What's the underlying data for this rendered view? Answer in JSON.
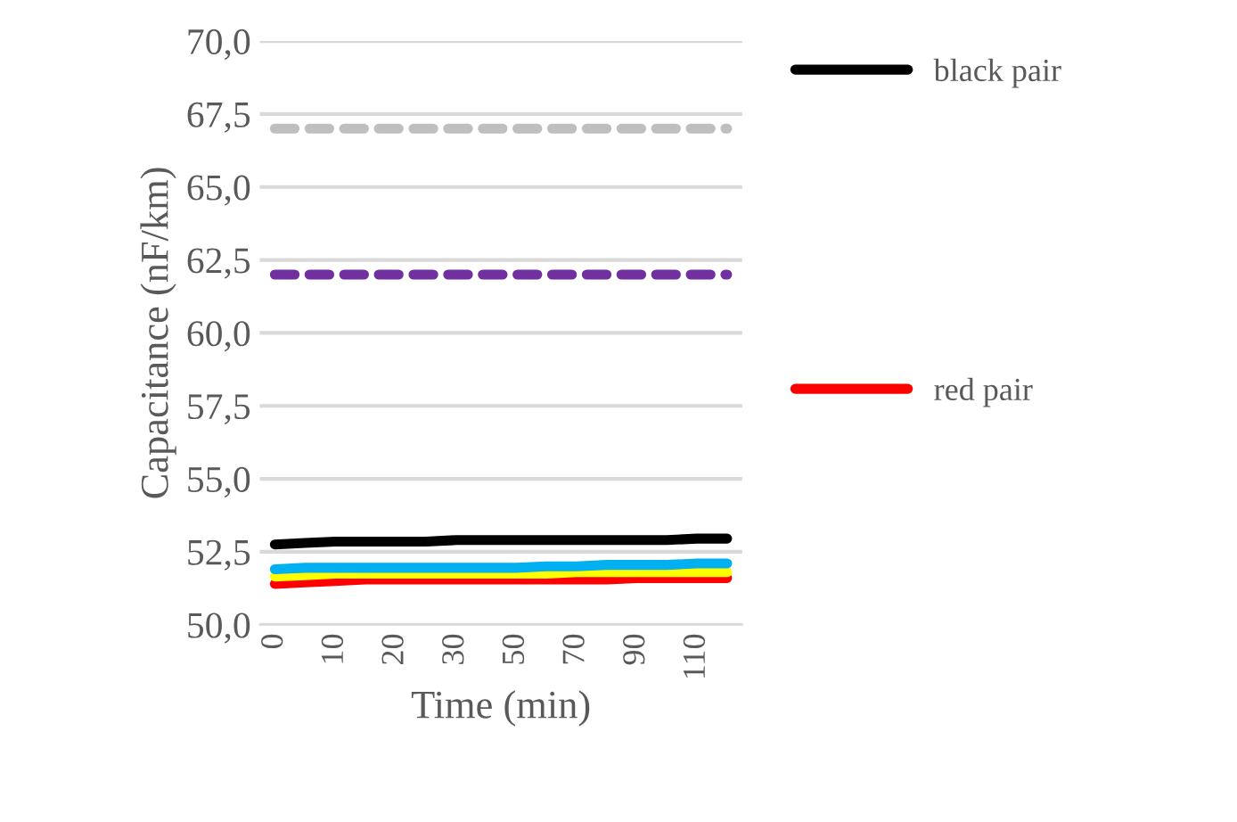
{
  "chart_data": {
    "type": "line",
    "xlabel": "Time (min)",
    "ylabel": "Capacitance (nF/km)",
    "categories": [
      "0",
      null,
      "10",
      null,
      "20",
      null,
      "30",
      null,
      "50",
      null,
      "70",
      null,
      "90",
      null,
      "110",
      null
    ],
    "series": [
      {
        "color": "#bfbfbf",
        "line_style": "dashed",
        "values": [
          67,
          67,
          67,
          67,
          67,
          67,
          67,
          67,
          67,
          67,
          67,
          67,
          67,
          67,
          67,
          67
        ]
      },
      {
        "color": "#7030a0",
        "line_style": "dashed",
        "values": [
          62,
          62,
          62,
          62,
          62,
          62,
          62,
          62,
          62,
          62,
          62,
          62,
          62,
          62,
          62,
          62
        ]
      },
      {
        "name": "red pair",
        "color": "#ff0000",
        "line_style": "solid",
        "values": [
          51.4,
          51.45,
          51.5,
          51.55,
          51.55,
          51.55,
          51.55,
          51.55,
          51.55,
          51.55,
          51.55,
          51.55,
          51.6,
          51.6,
          51.6,
          51.6
        ]
      },
      {
        "color": "#ffff00",
        "line_style": "solid",
        "values": [
          51.65,
          51.7,
          51.75,
          51.75,
          51.75,
          51.75,
          51.75,
          51.75,
          51.75,
          51.75,
          51.8,
          51.8,
          51.8,
          51.8,
          51.8,
          51.8
        ]
      },
      {
        "color": "#00b0f0",
        "line_style": "solid",
        "values": [
          51.9,
          51.95,
          51.95,
          51.95,
          51.95,
          51.95,
          51.95,
          51.95,
          51.95,
          52.0,
          52.0,
          52.05,
          52.05,
          52.05,
          52.1,
          52.1
        ]
      },
      {
        "name": "black pair",
        "color": "#000000",
        "line_style": "solid",
        "values": [
          52.75,
          52.8,
          52.85,
          52.85,
          52.85,
          52.85,
          52.9,
          52.9,
          52.9,
          52.9,
          52.9,
          52.9,
          52.9,
          52.9,
          52.95,
          52.95
        ]
      }
    ],
    "ylim": [
      50,
      70
    ],
    "yticks": [
      {
        "value": 50,
        "label": "50,0"
      },
      {
        "value": 52.5,
        "label": "52,5"
      },
      {
        "value": 55,
        "label": "55,0"
      },
      {
        "value": 57.5,
        "label": "57,5"
      },
      {
        "value": 60,
        "label": "60,0"
      },
      {
        "value": 62.5,
        "label": "62,5"
      },
      {
        "value": 65,
        "label": "65,0"
      },
      {
        "value": 67.5,
        "label": "67,5"
      },
      {
        "value": 70,
        "label": "70,0"
      }
    ],
    "grid": "y",
    "legend": "right",
    "marker": "none"
  }
}
